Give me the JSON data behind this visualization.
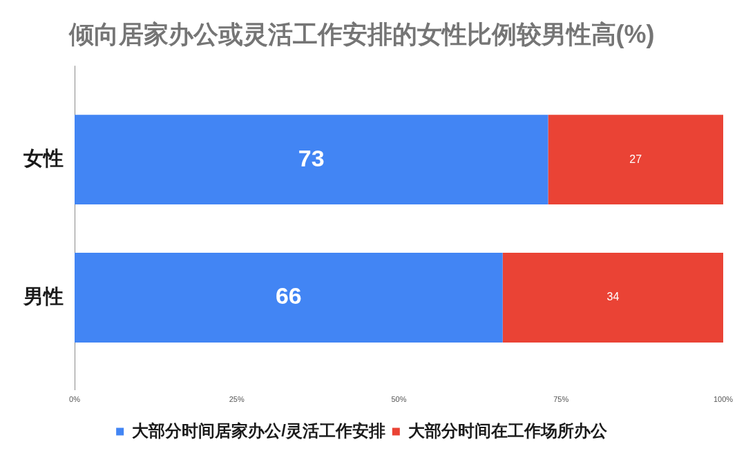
{
  "chart_data": {
    "type": "bar",
    "orientation": "horizontal",
    "stacked": true,
    "title": "倾向居家办公或灵活工作安排的女性比例较男性高(%)",
    "categories": [
      "女性",
      "男性"
    ],
    "series": [
      {
        "name": "大部分时间居家办公/灵活工作安排",
        "color": "#4285f4",
        "values": [
          73,
          66
        ]
      },
      {
        "name": "大部分时间在工作场所办公",
        "color": "#ea4335",
        "values": [
          27,
          34
        ]
      }
    ],
    "xlim": [
      0,
      100
    ],
    "xticks": [
      {
        "value": 0,
        "label": "0%"
      },
      {
        "value": 25,
        "label": "25%"
      },
      {
        "value": 50,
        "label": "50%"
      },
      {
        "value": 75,
        "label": "75%"
      },
      {
        "value": 100,
        "label": "100%"
      }
    ],
    "data_labels": true,
    "legend": "bottom",
    "grid": false
  }
}
